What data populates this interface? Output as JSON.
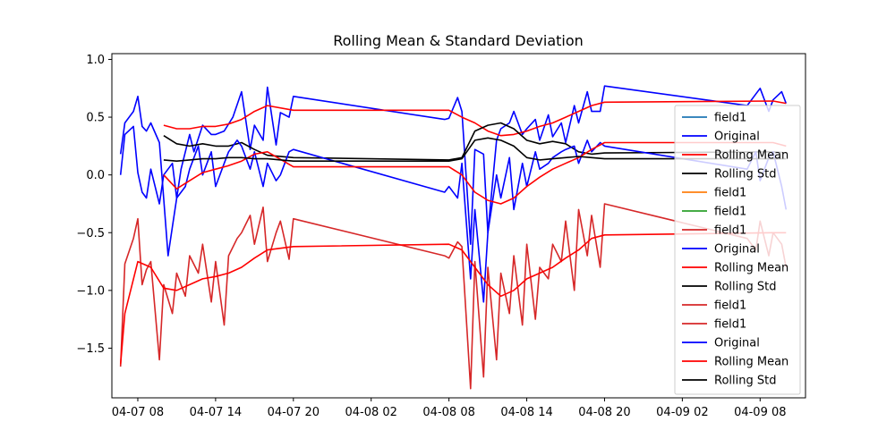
{
  "chart_data": {
    "type": "line",
    "title": "Rolling Mean & Standard Deviation",
    "xlabel": "",
    "ylabel": "",
    "x_axis_type": "datetime",
    "xlim": [
      "2024-04-07T06:00",
      "2024-04-09T11:30"
    ],
    "ylim": [
      -1.93,
      1.05
    ],
    "grid": false,
    "x_ticks": [
      {
        "t": "2024-04-07T08:00",
        "label": "04-07 08"
      },
      {
        "t": "2024-04-07T14:00",
        "label": "04-07 14"
      },
      {
        "t": "2024-04-07T20:00",
        "label": "04-07 20"
      },
      {
        "t": "2024-04-08T02:00",
        "label": "04-08 02"
      },
      {
        "t": "2024-04-08T08:00",
        "label": "04-08 08"
      },
      {
        "t": "2024-04-08T14:00",
        "label": "04-08 14"
      },
      {
        "t": "2024-04-08T20:00",
        "label": "04-08 20"
      },
      {
        "t": "2024-04-09T02:00",
        "label": "04-09 02"
      },
      {
        "t": "2024-04-09T08:00",
        "label": "04-09 08"
      }
    ],
    "y_ticks": [
      {
        "v": 1.0,
        "label": "1.0"
      },
      {
        "v": 0.5,
        "label": "0.5"
      },
      {
        "v": 0.0,
        "label": "0.0"
      },
      {
        "v": -0.5,
        "label": "−0.5"
      },
      {
        "v": -1.0,
        "label": "−1.0"
      },
      {
        "v": -1.5,
        "label": "−1.5"
      }
    ],
    "legend_position": "right",
    "series": [
      {
        "name": "field1",
        "color": "#1f77b4",
        "x": [],
        "y": []
      },
      {
        "name": "Original",
        "color": "#0000ff",
        "x": [
          "2024-04-07T06:40",
          "2024-04-07T07:00",
          "2024-04-07T07:40",
          "2024-04-07T08:00",
          "2024-04-07T08:20",
          "2024-04-07T08:40",
          "2024-04-07T09:00",
          "2024-04-07T09:40",
          "2024-04-07T10:20",
          "2024-04-07T10:40",
          "2024-04-07T11:20",
          "2024-04-07T12:00",
          "2024-04-07T12:20",
          "2024-04-07T13:00",
          "2024-04-07T13:40",
          "2024-04-07T14:00",
          "2024-04-07T14:40",
          "2024-04-07T15:20",
          "2024-04-07T16:00",
          "2024-04-07T16:40",
          "2024-04-07T17:00",
          "2024-04-07T17:40",
          "2024-04-07T18:00",
          "2024-04-07T18:40",
          "2024-04-07T19:00",
          "2024-04-07T19:40",
          "2024-04-07T20:00",
          "2024-04-08T07:40",
          "2024-04-08T08:00",
          "2024-04-08T08:40",
          "2024-04-08T09:00",
          "2024-04-08T09:40",
          "2024-04-08T10:00",
          "2024-04-08T10:40",
          "2024-04-08T11:00",
          "2024-04-08T11:40",
          "2024-04-08T12:00",
          "2024-04-08T12:40",
          "2024-04-08T13:00",
          "2024-04-08T13:40",
          "2024-04-08T14:00",
          "2024-04-08T14:40",
          "2024-04-08T15:00",
          "2024-04-08T15:40",
          "2024-04-08T16:00",
          "2024-04-08T16:40",
          "2024-04-08T17:00",
          "2024-04-08T17:40",
          "2024-04-08T18:00",
          "2024-04-08T18:40",
          "2024-04-08T19:00",
          "2024-04-08T19:40",
          "2024-04-08T20:00",
          "2024-04-09T07:00",
          "2024-04-09T07:40",
          "2024-04-09T08:00",
          "2024-04-09T08:40",
          "2024-04-09T09:00",
          "2024-04-09T09:40",
          "2024-04-09T10:00"
        ],
        "y": [
          0.18,
          0.45,
          0.55,
          0.68,
          0.42,
          0.38,
          0.45,
          0.28,
          -0.7,
          -0.45,
          0.05,
          0.35,
          0.2,
          0.43,
          0.35,
          0.35,
          0.38,
          0.5,
          0.72,
          0.22,
          0.43,
          0.3,
          0.76,
          0.26,
          0.54,
          0.5,
          0.68,
          0.48,
          0.49,
          0.67,
          0.55,
          -0.6,
          0.22,
          0.18,
          -0.5,
          0.3,
          0.4,
          0.45,
          0.55,
          0.35,
          0.4,
          0.48,
          0.3,
          0.52,
          0.33,
          0.45,
          0.28,
          0.6,
          0.45,
          0.72,
          0.55,
          0.55,
          0.77,
          0.6,
          0.7,
          0.75,
          0.55,
          0.65,
          0.72,
          0.62
        ]
      },
      {
        "name": "Rolling Mean",
        "color": "#ff0000",
        "x": [
          "2024-04-07T10:00",
          "2024-04-07T11:00",
          "2024-04-07T12:00",
          "2024-04-07T13:00",
          "2024-04-07T14:00",
          "2024-04-07T15:00",
          "2024-04-07T16:00",
          "2024-04-07T17:00",
          "2024-04-07T18:00",
          "2024-04-07T20:00",
          "2024-04-08T08:00",
          "2024-04-08T09:00",
          "2024-04-08T10:00",
          "2024-04-08T11:00",
          "2024-04-08T12:00",
          "2024-04-08T13:00",
          "2024-04-08T14:00",
          "2024-04-08T15:00",
          "2024-04-08T16:00",
          "2024-04-08T17:00",
          "2024-04-08T18:00",
          "2024-04-08T19:00",
          "2024-04-08T20:00",
          "2024-04-09T09:00",
          "2024-04-09T10:00"
        ],
        "y": [
          0.43,
          0.4,
          0.4,
          0.42,
          0.42,
          0.44,
          0.48,
          0.55,
          0.6,
          0.56,
          0.56,
          0.5,
          0.45,
          0.38,
          0.34,
          0.35,
          0.38,
          0.42,
          0.45,
          0.5,
          0.55,
          0.6,
          0.63,
          0.64,
          0.62
        ]
      },
      {
        "name": "Rolling Std",
        "color": "#000000",
        "x": [
          "2024-04-07T10:00",
          "2024-04-07T11:00",
          "2024-04-07T12:00",
          "2024-04-07T13:00",
          "2024-04-07T14:00",
          "2024-04-07T15:00",
          "2024-04-07T16:00",
          "2024-04-07T17:00",
          "2024-04-07T18:00",
          "2024-04-07T20:00",
          "2024-04-08T08:00",
          "2024-04-08T09:00",
          "2024-04-08T10:00",
          "2024-04-08T11:00",
          "2024-04-08T12:00",
          "2024-04-08T13:00",
          "2024-04-08T14:00",
          "2024-04-08T15:00",
          "2024-04-08T16:00",
          "2024-04-08T17:00",
          "2024-04-08T18:00",
          "2024-04-08T19:00",
          "2024-04-08T20:00",
          "2024-04-09T09:00",
          "2024-04-09T10:00"
        ],
        "y": [
          0.34,
          0.27,
          0.25,
          0.27,
          0.25,
          0.25,
          0.28,
          0.22,
          0.17,
          0.15,
          0.13,
          0.15,
          0.38,
          0.43,
          0.45,
          0.4,
          0.3,
          0.27,
          0.29,
          0.27,
          0.2,
          0.18,
          0.19,
          0.2,
          0.19
        ]
      },
      {
        "name": "field1",
        "color": "#ff7f0e",
        "x": [],
        "y": []
      },
      {
        "name": "field1",
        "color": "#2ca02c",
        "x": [],
        "y": []
      },
      {
        "name": "field1",
        "color": "#d62728",
        "x": [],
        "y": []
      },
      {
        "name": "Original",
        "color": "#0000ff",
        "x": [
          "2024-04-07T06:40",
          "2024-04-07T07:00",
          "2024-04-07T07:40",
          "2024-04-07T08:00",
          "2024-04-07T08:20",
          "2024-04-07T08:40",
          "2024-04-07T09:00",
          "2024-04-07T09:40",
          "2024-04-07T10:00",
          "2024-04-07T10:40",
          "2024-04-07T11:00",
          "2024-04-07T11:40",
          "2024-04-07T12:00",
          "2024-04-07T12:40",
          "2024-04-07T13:00",
          "2024-04-07T13:40",
          "2024-04-07T14:00",
          "2024-04-07T14:40",
          "2024-04-07T15:00",
          "2024-04-07T15:40",
          "2024-04-07T16:00",
          "2024-04-07T16:40",
          "2024-04-07T17:00",
          "2024-04-07T17:40",
          "2024-04-07T18:00",
          "2024-04-07T18:40",
          "2024-04-07T19:00",
          "2024-04-07T19:40",
          "2024-04-07T20:00",
          "2024-04-08T07:40",
          "2024-04-08T08:00",
          "2024-04-08T08:40",
          "2024-04-08T09:00",
          "2024-04-08T09:40",
          "2024-04-08T10:00",
          "2024-04-08T10:40",
          "2024-04-08T11:00",
          "2024-04-08T11:40",
          "2024-04-08T12:00",
          "2024-04-08T12:40",
          "2024-04-08T13:00",
          "2024-04-08T13:40",
          "2024-04-08T14:00",
          "2024-04-08T14:40",
          "2024-04-08T15:00",
          "2024-04-08T15:40",
          "2024-04-08T16:00",
          "2024-04-08T16:40",
          "2024-04-08T17:00",
          "2024-04-08T17:40",
          "2024-04-08T18:00",
          "2024-04-08T18:40",
          "2024-04-08T19:00",
          "2024-04-08T19:40",
          "2024-04-08T20:00",
          "2024-04-09T07:00",
          "2024-04-09T07:40",
          "2024-04-09T08:00",
          "2024-04-09T08:40",
          "2024-04-09T09:00",
          "2024-04-09T09:40",
          "2024-04-09T10:00"
        ],
        "y": [
          0.0,
          0.35,
          0.42,
          0.02,
          -0.15,
          -0.2,
          0.05,
          -0.25,
          0.0,
          0.1,
          -0.2,
          -0.1,
          0.05,
          0.25,
          0.0,
          0.2,
          -0.1,
          0.1,
          0.2,
          0.3,
          0.25,
          0.05,
          0.2,
          -0.1,
          0.1,
          -0.05,
          0.0,
          0.2,
          0.22,
          -0.15,
          -0.1,
          -0.2,
          0.1,
          -0.9,
          -0.3,
          -1.1,
          -0.5,
          0.0,
          -0.2,
          0.15,
          -0.3,
          0.1,
          -0.1,
          0.2,
          0.05,
          0.1,
          0.15,
          0.2,
          0.22,
          0.25,
          0.1,
          0.3,
          0.2,
          0.28,
          0.25,
          0.05,
          0.2,
          -0.05,
          0.15,
          0.2,
          -0.1,
          -0.3
        ]
      },
      {
        "name": "Rolling Mean",
        "color": "#ff0000",
        "x": [
          "2024-04-07T10:00",
          "2024-04-07T11:00",
          "2024-04-07T12:00",
          "2024-04-07T13:00",
          "2024-04-07T14:00",
          "2024-04-07T15:00",
          "2024-04-07T16:00",
          "2024-04-07T17:00",
          "2024-04-07T18:00",
          "2024-04-07T20:00",
          "2024-04-08T08:00",
          "2024-04-08T09:00",
          "2024-04-08T10:00",
          "2024-04-08T11:00",
          "2024-04-08T12:00",
          "2024-04-08T13:00",
          "2024-04-08T14:00",
          "2024-04-08T15:00",
          "2024-04-08T16:00",
          "2024-04-08T17:00",
          "2024-04-08T18:00",
          "2024-04-08T19:00",
          "2024-04-08T20:00",
          "2024-04-09T09:00",
          "2024-04-09T10:00"
        ],
        "y": [
          0.0,
          -0.12,
          -0.05,
          0.02,
          0.05,
          0.08,
          0.12,
          0.18,
          0.2,
          0.07,
          0.07,
          0.0,
          -0.15,
          -0.22,
          -0.25,
          -0.2,
          -0.1,
          -0.02,
          0.05,
          0.1,
          0.15,
          0.22,
          0.28,
          0.28,
          0.25
        ]
      },
      {
        "name": "Rolling Std",
        "color": "#000000",
        "x": [
          "2024-04-07T10:00",
          "2024-04-07T11:00",
          "2024-04-07T12:00",
          "2024-04-07T13:00",
          "2024-04-07T14:00",
          "2024-04-07T15:00",
          "2024-04-07T16:00",
          "2024-04-07T17:00",
          "2024-04-07T18:00",
          "2024-04-07T20:00",
          "2024-04-08T08:00",
          "2024-04-08T09:00",
          "2024-04-08T10:00",
          "2024-04-08T11:00",
          "2024-04-08T12:00",
          "2024-04-08T13:00",
          "2024-04-08T14:00",
          "2024-04-08T15:00",
          "2024-04-08T16:00",
          "2024-04-08T17:00",
          "2024-04-08T18:00",
          "2024-04-08T19:00",
          "2024-04-08T20:00",
          "2024-04-09T09:00",
          "2024-04-09T10:00"
        ],
        "y": [
          0.13,
          0.12,
          0.13,
          0.14,
          0.14,
          0.15,
          0.15,
          0.14,
          0.14,
          0.12,
          0.12,
          0.14,
          0.3,
          0.32,
          0.3,
          0.25,
          0.15,
          0.13,
          0.14,
          0.15,
          0.16,
          0.15,
          0.14,
          0.14,
          0.14
        ]
      },
      {
        "name": "field1",
        "color": "#d62728",
        "x": [
          "2024-04-07T06:40",
          "2024-04-07T07:00",
          "2024-04-07T07:40",
          "2024-04-07T08:00",
          "2024-04-07T08:20",
          "2024-04-07T08:40",
          "2024-04-07T09:00",
          "2024-04-07T09:40",
          "2024-04-07T10:00",
          "2024-04-07T10:40",
          "2024-04-07T11:00",
          "2024-04-07T11:40",
          "2024-04-07T12:00",
          "2024-04-07T12:40",
          "2024-04-07T13:00",
          "2024-04-07T13:40",
          "2024-04-07T14:00",
          "2024-04-07T14:40",
          "2024-04-07T15:00",
          "2024-04-07T15:40",
          "2024-04-07T16:00",
          "2024-04-07T16:40",
          "2024-04-07T17:00",
          "2024-04-07T17:40",
          "2024-04-07T18:00",
          "2024-04-07T18:40",
          "2024-04-07T19:00",
          "2024-04-07T19:40",
          "2024-04-07T20:00",
          "2024-04-08T07:40",
          "2024-04-08T08:00",
          "2024-04-08T08:40",
          "2024-04-08T09:00",
          "2024-04-08T09:40",
          "2024-04-08T10:00",
          "2024-04-08T10:40",
          "2024-04-08T11:00",
          "2024-04-08T11:40",
          "2024-04-08T12:00",
          "2024-04-08T12:40",
          "2024-04-08T13:00",
          "2024-04-08T13:40",
          "2024-04-08T14:00",
          "2024-04-08T14:40",
          "2024-04-08T15:00",
          "2024-04-08T15:40",
          "2024-04-08T16:00",
          "2024-04-08T16:40",
          "2024-04-08T17:00",
          "2024-04-08T17:40",
          "2024-04-08T18:00",
          "2024-04-08T18:40",
          "2024-04-08T19:00",
          "2024-04-08T19:40",
          "2024-04-08T20:00",
          "2024-04-09T07:00",
          "2024-04-09T07:40",
          "2024-04-09T08:00",
          "2024-04-09T08:40",
          "2024-04-09T09:00",
          "2024-04-09T09:40",
          "2024-04-09T10:00"
        ],
        "y": [
          -1.66,
          -0.77,
          -0.55,
          -0.38,
          -0.95,
          -0.82,
          -0.75,
          -1.6,
          -0.95,
          -1.2,
          -0.85,
          -1.05,
          -0.7,
          -0.85,
          -0.6,
          -1.1,
          -0.75,
          -1.3,
          -0.7,
          -0.55,
          -0.5,
          -0.35,
          -0.6,
          -0.28,
          -0.75,
          -0.5,
          -0.4,
          -0.73,
          -0.38,
          -0.7,
          -0.72,
          -0.58,
          -0.62,
          -1.85,
          -0.75,
          -1.75,
          -0.8,
          -1.6,
          -0.85,
          -1.2,
          -0.7,
          -1.3,
          -0.6,
          -1.25,
          -0.8,
          -0.9,
          -0.6,
          -0.75,
          -0.4,
          -1.0,
          -0.3,
          -0.7,
          -0.35,
          -0.8,
          -0.25,
          -0.55,
          -0.65,
          -0.4,
          -0.7,
          -0.5,
          -0.6,
          -0.8
        ]
      },
      {
        "name": "field1",
        "color": "#d62728",
        "x": [],
        "y": []
      },
      {
        "name": "Original",
        "color": "#0000ff",
        "x": [],
        "y": []
      },
      {
        "name": "Rolling Mean",
        "color": "#ff0000",
        "x": [
          "2024-04-07T06:40",
          "2024-04-07T07:00",
          "2024-04-07T08:00",
          "2024-04-07T09:00",
          "2024-04-07T10:00",
          "2024-04-07T11:00",
          "2024-04-07T12:00",
          "2024-04-07T13:00",
          "2024-04-07T14:00",
          "2024-04-07T15:00",
          "2024-04-07T16:00",
          "2024-04-07T17:00",
          "2024-04-07T18:00",
          "2024-04-07T20:00",
          "2024-04-08T08:00",
          "2024-04-08T09:00",
          "2024-04-08T10:00",
          "2024-04-08T11:00",
          "2024-04-08T12:00",
          "2024-04-08T13:00",
          "2024-04-08T14:00",
          "2024-04-08T15:00",
          "2024-04-08T16:00",
          "2024-04-08T17:00",
          "2024-04-08T18:00",
          "2024-04-08T19:00",
          "2024-04-08T20:00",
          "2024-04-09T09:00",
          "2024-04-09T10:00"
        ],
        "y": [
          -1.64,
          -1.2,
          -0.75,
          -0.8,
          -0.98,
          -1.0,
          -0.95,
          -0.9,
          -0.88,
          -0.85,
          -0.8,
          -0.72,
          -0.65,
          -0.62,
          -0.6,
          -0.65,
          -0.8,
          -0.95,
          -1.05,
          -1.0,
          -0.9,
          -0.85,
          -0.8,
          -0.72,
          -0.65,
          -0.55,
          -0.52,
          -0.5,
          -0.5
        ]
      },
      {
        "name": "Rolling Std",
        "color": "#000000",
        "x": [],
        "y": []
      }
    ]
  }
}
